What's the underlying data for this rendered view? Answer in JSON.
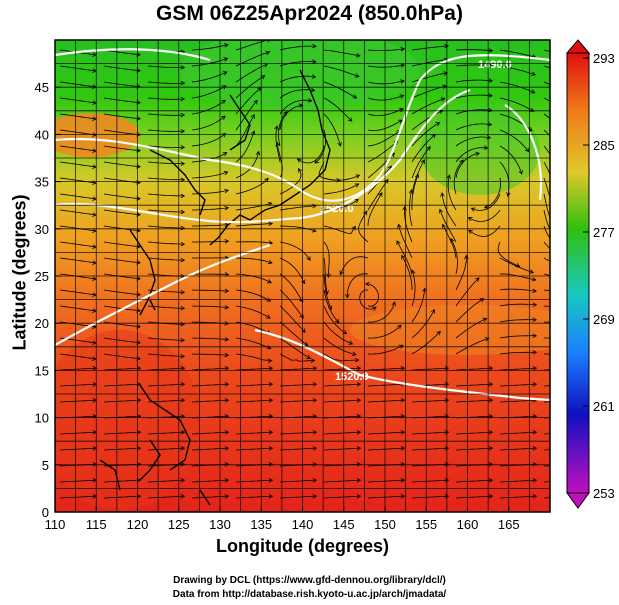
{
  "title": "GSM 06Z25Apr2024 (850.0hPa)",
  "x_axis": {
    "title": "Longitude (degrees)",
    "range": [
      110,
      170
    ],
    "ticks": [
      "110",
      "115",
      "120",
      "125",
      "130",
      "135",
      "140",
      "145",
      "150",
      "155",
      "160",
      "165"
    ]
  },
  "y_axis": {
    "title": "Latitude  (degrees)",
    "range": [
      0,
      50
    ],
    "ticks": [
      "0",
      "5",
      "10",
      "15",
      "20",
      "25",
      "30",
      "35",
      "40",
      "45"
    ]
  },
  "colorbar": {
    "labels": [
      "293",
      "285",
      "277",
      "269",
      "261",
      "253"
    ],
    "colors": [
      "#e0100e",
      "#f07a1a",
      "#f5b82a",
      "#30c010",
      "#18c8c0",
      "#1a80ff",
      "#1010c0",
      "#c010c0"
    ]
  },
  "contour_labels": [
    "1490.0",
    "1520.0",
    "1520.0"
  ],
  "credits": {
    "line1": "Drawing by DCL (https://www.gfd-dennou.org/library/dcl/)",
    "line2": "Data from http://database.rish.kyoto-u.ac.jp/arch/jmadata/"
  }
}
